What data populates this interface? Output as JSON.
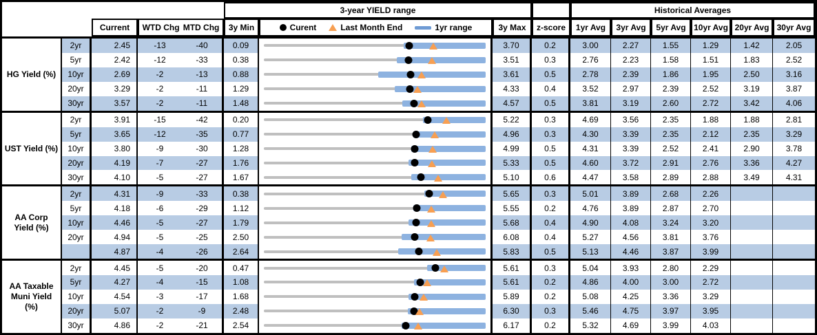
{
  "header": {
    "range_title": "3-year YIELD range",
    "hist_title": "Historical Averages",
    "col_current": "Current",
    "col_wtd": "WTD Chg",
    "col_mtd": "MTD Chg",
    "col_3y_min": "3y Min",
    "col_3y_max": "3y Max",
    "col_zscore": "z-score",
    "avg_cols": [
      "1yr Avg",
      "3yr Avg",
      "5yr Avg",
      "10yr Avg",
      "20yr Avg",
      "30yr Avg"
    ]
  },
  "legend": {
    "current": "Curent",
    "last_month": "Last Month End",
    "range_1yr": "1yr range"
  },
  "colors": {
    "row_shade": "#B8CCE4",
    "bar_blue": "#8DB2E0",
    "track_gray": "#BFBFBF",
    "marker_orange": "#F79F52",
    "dot_black": "#000000",
    "border": "#000000"
  },
  "chart_data": {
    "type": "table",
    "columns": [
      "",
      "",
      "Current",
      "WTD Chg",
      "MTD Chg",
      "3y Min",
      "3-year YIELD range",
      "3y Max",
      "z-score",
      "1yr Avg",
      "3yr Avg",
      "5yr Avg",
      "10yr Avg",
      "20yr Avg",
      "30yr Avg"
    ],
    "range_chart": {
      "type": "bullet-range",
      "track": "3y min to 3y max",
      "bar": "1yr range (ends at 3y max)",
      "dot": "Current",
      "triangle": "Last Month End"
    },
    "sections": [
      {
        "label": "HG Yield (%)",
        "rows": [
          {
            "tenor": "2yr",
            "current": "2.45",
            "wtd": "-13",
            "mtd": "-40",
            "min_3y": "0.09",
            "max_3y": "3.70",
            "zscore": "0.2",
            "avgs": [
              "3.00",
              "2.27",
              "1.55",
              "1.29",
              "1.42",
              "2.05"
            ],
            "range_1yr_low": 2.37,
            "last_month_end": 2.85
          },
          {
            "tenor": "5yr",
            "current": "2.42",
            "wtd": "-12",
            "mtd": "-33",
            "min_3y": "0.38",
            "max_3y": "3.51",
            "zscore": "0.3",
            "avgs": [
              "2.76",
              "2.23",
              "1.58",
              "1.51",
              "1.83",
              "2.52"
            ],
            "range_1yr_low": 2.26,
            "last_month_end": 2.75
          },
          {
            "tenor": "10yr",
            "current": "2.69",
            "wtd": "-2",
            "mtd": "-13",
            "min_3y": "0.88",
            "max_3y": "3.61",
            "zscore": "0.5",
            "avgs": [
              "2.78",
              "2.39",
              "1.86",
              "1.95",
              "2.50",
              "3.16"
            ],
            "range_1yr_low": 2.29,
            "last_month_end": 2.82
          },
          {
            "tenor": "20yr",
            "current": "3.29",
            "wtd": "-2",
            "mtd": "-11",
            "min_3y": "1.29",
            "max_3y": "4.33",
            "zscore": "0.4",
            "avgs": [
              "3.52",
              "2.97",
              "2.39",
              "2.52",
              "3.19",
              "3.87"
            ],
            "range_1yr_low": 3.08,
            "last_month_end": 3.4
          },
          {
            "tenor": "30yr",
            "current": "3.57",
            "wtd": "-2",
            "mtd": "-11",
            "min_3y": "1.48",
            "max_3y": "4.57",
            "zscore": "0.5",
            "avgs": [
              "3.81",
              "3.19",
              "2.60",
              "2.72",
              "3.42",
              "4.06"
            ],
            "range_1yr_low": 3.41,
            "last_month_end": 3.68
          }
        ]
      },
      {
        "label": "UST Yield (%)",
        "rows": [
          {
            "tenor": "2yr",
            "current": "3.91",
            "wtd": "-15",
            "mtd": "-42",
            "min_3y": "0.20",
            "max_3y": "5.22",
            "zscore": "0.3",
            "avgs": [
              "4.69",
              "3.56",
              "2.35",
              "1.88",
              "1.88",
              "2.81"
            ],
            "range_1yr_low": 3.8,
            "last_month_end": 4.33
          },
          {
            "tenor": "5yr",
            "current": "3.65",
            "wtd": "-12",
            "mtd": "-35",
            "min_3y": "0.77",
            "max_3y": "4.96",
            "zscore": "0.3",
            "avgs": [
              "4.30",
              "3.39",
              "2.35",
              "2.12",
              "2.35",
              "3.29"
            ],
            "range_1yr_low": 3.6,
            "last_month_end": 4.0
          },
          {
            "tenor": "10yr",
            "current": "3.80",
            "wtd": "-9",
            "mtd": "-30",
            "min_3y": "1.28",
            "max_3y": "4.99",
            "zscore": "0.5",
            "avgs": [
              "4.31",
              "3.39",
              "2.52",
              "2.41",
              "2.90",
              "3.78"
            ],
            "range_1yr_low": 3.75,
            "last_month_end": 4.1
          },
          {
            "tenor": "20yr",
            "current": "4.19",
            "wtd": "-7",
            "mtd": "-27",
            "min_3y": "1.76",
            "max_3y": "5.33",
            "zscore": "0.5",
            "avgs": [
              "4.60",
              "3.72",
              "2.91",
              "2.76",
              "3.36",
              "4.27"
            ],
            "range_1yr_low": 4.09,
            "last_month_end": 4.46
          },
          {
            "tenor": "30yr",
            "current": "4.10",
            "wtd": "-5",
            "mtd": "-27",
            "min_3y": "1.67",
            "max_3y": "5.10",
            "zscore": "0.6",
            "avgs": [
              "4.47",
              "3.58",
              "2.89",
              "2.88",
              "3.49",
              "4.31"
            ],
            "range_1yr_low": 3.95,
            "last_month_end": 4.37
          }
        ]
      },
      {
        "label": "AA Corp Yield (%)",
        "rows": [
          {
            "tenor": "2yr",
            "current": "4.31",
            "wtd": "-9",
            "mtd": "-33",
            "min_3y": "0.38",
            "max_3y": "5.65",
            "zscore": "0.3",
            "avgs": [
              "5.01",
              "3.89",
              "2.68",
              "2.26",
              null,
              null
            ],
            "range_1yr_low": 4.19,
            "last_month_end": 4.64
          },
          {
            "tenor": "5yr",
            "current": "4.18",
            "wtd": "-6",
            "mtd": "-29",
            "min_3y": "1.12",
            "max_3y": "5.55",
            "zscore": "0.2",
            "avgs": [
              "4.76",
              "3.89",
              "2.87",
              "2.70",
              null,
              null
            ],
            "range_1yr_low": 4.11,
            "last_month_end": 4.47
          },
          {
            "tenor": "10yr",
            "current": "4.46",
            "wtd": "-5",
            "mtd": "-27",
            "min_3y": "1.79",
            "max_3y": "5.68",
            "zscore": "0.4",
            "avgs": [
              "4.90",
              "4.08",
              "3.24",
              "3.20",
              null,
              null
            ],
            "range_1yr_low": 4.33,
            "last_month_end": 4.73
          },
          {
            "tenor": "20yr",
            "current": "4.94",
            "wtd": "-5",
            "mtd": "-25",
            "min_3y": "2.50",
            "max_3y": "6.08",
            "zscore": "0.4",
            "avgs": [
              "5.27",
              "4.56",
              "3.81",
              "3.76",
              null,
              null
            ],
            "range_1yr_low": 4.72,
            "last_month_end": 5.19
          },
          {
            "tenor": "",
            "current": "4.87",
            "wtd": "-4",
            "mtd": "-26",
            "min_3y": "2.64",
            "max_3y": "5.83",
            "zscore": "0.5",
            "avgs": [
              "5.13",
              "4.46",
              "3.87",
              "3.99",
              null,
              null
            ],
            "range_1yr_low": 4.57,
            "last_month_end": 5.13
          }
        ]
      },
      {
        "label": "AA Taxable Muni Yield (%)",
        "rows": [
          {
            "tenor": "2yr",
            "current": "4.45",
            "wtd": "-5",
            "mtd": "-20",
            "min_3y": "0.47",
            "max_3y": "5.61",
            "zscore": "0.3",
            "avgs": [
              "5.04",
              "3.93",
              "2.80",
              "2.29",
              null,
              null
            ],
            "range_1yr_low": 4.25,
            "last_month_end": 4.65
          },
          {
            "tenor": "5yr",
            "current": "4.27",
            "wtd": "-4",
            "mtd": "-15",
            "min_3y": "1.08",
            "max_3y": "5.61",
            "zscore": "0.2",
            "avgs": [
              "4.86",
              "4.00",
              "3.00",
              "2.72",
              null,
              null
            ],
            "range_1yr_low": 4.14,
            "last_month_end": 4.42
          },
          {
            "tenor": "10yr",
            "current": "4.54",
            "wtd": "-3",
            "mtd": "-17",
            "min_3y": "1.68",
            "max_3y": "5.89",
            "zscore": "0.2",
            "avgs": [
              "5.08",
              "4.25",
              "3.36",
              "3.29",
              null,
              null
            ],
            "range_1yr_low": 4.42,
            "last_month_end": 4.71
          },
          {
            "tenor": "20yr",
            "current": "5.07",
            "wtd": "-2",
            "mtd": "-9",
            "min_3y": "2.48",
            "max_3y": "6.30",
            "zscore": "0.3",
            "avgs": [
              "5.46",
              "4.75",
              "3.97",
              "3.95",
              null,
              null
            ],
            "range_1yr_low": 4.96,
            "last_month_end": 5.16
          },
          {
            "tenor": "30yr",
            "current": "4.86",
            "wtd": "-2",
            "mtd": "-21",
            "min_3y": "2.54",
            "max_3y": "6.17",
            "zscore": "0.2",
            "avgs": [
              "5.32",
              "4.69",
              "3.99",
              "4.03",
              null,
              null
            ],
            "range_1yr_low": 4.79,
            "last_month_end": 5.07
          }
        ]
      }
    ]
  }
}
